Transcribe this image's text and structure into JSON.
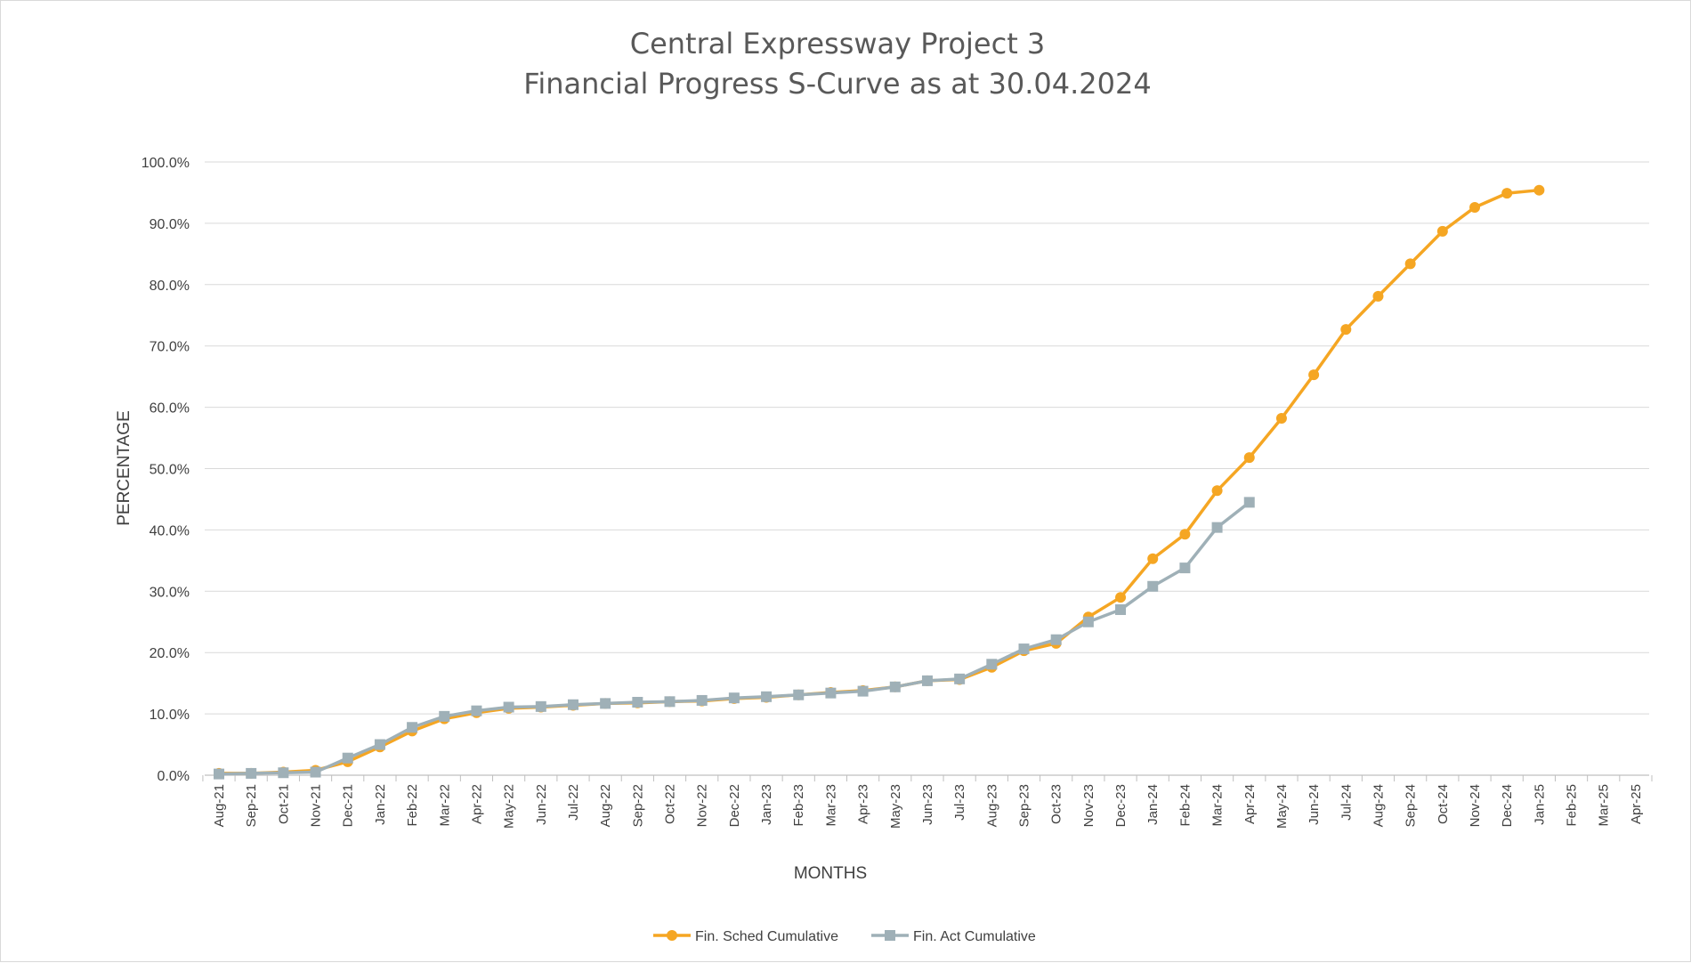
{
  "chart_data": {
    "type": "line",
    "title": "Central Expressway Project 3",
    "subtitle": "Financial Progress S-Curve as at 30.04.2024",
    "xlabel": "MONTHS",
    "ylabel": "PERCENTAGE",
    "ylim": [
      0,
      100
    ],
    "y_ticks": [
      "0.0%",
      "10.0%",
      "20.0%",
      "30.0%",
      "40.0%",
      "50.0%",
      "60.0%",
      "70.0%",
      "80.0%",
      "90.0%",
      "100.0%"
    ],
    "grid": true,
    "legend_position": "bottom",
    "categories": [
      "Aug-21",
      "Sep-21",
      "Oct-21",
      "Nov-21",
      "Dec-21",
      "Jan-22",
      "Feb-22",
      "Mar-22",
      "Apr-22",
      "May-22",
      "Jun-22",
      "Jul-22",
      "Aug-22",
      "Sep-22",
      "Oct-22",
      "Nov-22",
      "Dec-22",
      "Jan-23",
      "Feb-23",
      "Mar-23",
      "Apr-23",
      "May-23",
      "Jun-23",
      "Jul-23",
      "Aug-23",
      "Sep-23",
      "Oct-23",
      "Nov-23",
      "Dec-23",
      "Jan-24",
      "Feb-24",
      "Mar-24",
      "Apr-24",
      "May-24",
      "Jun-24",
      "Jul-24",
      "Aug-24",
      "Sep-24",
      "Oct-24",
      "Nov-24",
      "Dec-24",
      "Jan-25",
      "Feb-25",
      "Mar-25",
      "Apr-25"
    ],
    "series": [
      {
        "name": "Fin. Sched Cumulative",
        "color": "#f5a623",
        "marker": "circle",
        "values": [
          0.3,
          0.3,
          0.5,
          0.8,
          2.2,
          4.6,
          7.2,
          9.2,
          10.2,
          10.9,
          11.1,
          11.4,
          11.7,
          11.8,
          12.0,
          12.1,
          12.5,
          12.7,
          13.1,
          13.5,
          13.8,
          14.4,
          15.4,
          15.6,
          17.6,
          20.3,
          21.5,
          25.8,
          29.0,
          35.3,
          39.3,
          46.4,
          51.8,
          58.2,
          65.3,
          72.7,
          78.1,
          83.4,
          88.7,
          92.6,
          94.9,
          95.4,
          null,
          null,
          null
        ]
      },
      {
        "name": "Fin. Act Cumulative",
        "color": "#9fb0b7",
        "marker": "square",
        "values": [
          0.2,
          0.3,
          0.4,
          0.5,
          2.8,
          5.0,
          7.8,
          9.6,
          10.5,
          11.1,
          11.2,
          11.5,
          11.7,
          11.9,
          12.0,
          12.2,
          12.6,
          12.8,
          13.1,
          13.4,
          13.7,
          14.4,
          15.4,
          15.7,
          18.1,
          20.6,
          22.1,
          25.0,
          27.0,
          30.8,
          33.8,
          40.4,
          44.5,
          null,
          null,
          null,
          null,
          null,
          null,
          null,
          null,
          null,
          null,
          null,
          null
        ]
      }
    ]
  }
}
